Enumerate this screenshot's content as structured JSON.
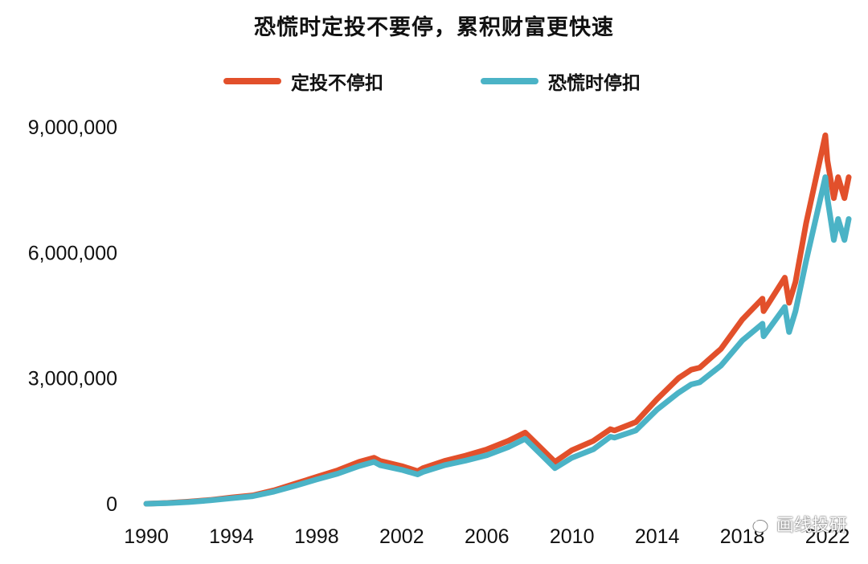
{
  "chart_data": {
    "type": "line",
    "title": "恐慌时定投不要停，累积财富更快速",
    "xlabel": "",
    "ylabel": "",
    "xlim": [
      1990,
      2023
    ],
    "ylim": [
      0,
      9000000
    ],
    "x_ticks": [
      1990,
      1994,
      1998,
      2002,
      2006,
      2010,
      2014,
      2018,
      2022
    ],
    "y_ticks": [
      0,
      3000000,
      6000000,
      9000000
    ],
    "y_tick_labels": [
      "0",
      "3,000,000",
      "6,000,000",
      "9,000,000"
    ],
    "legend_position": "top",
    "grid": false,
    "series": [
      {
        "name": "定投不停扣",
        "color": "#e2502b",
        "x": [
          1990,
          1991,
          1992,
          1993,
          1994,
          1995,
          1996,
          1997,
          1998,
          1999,
          2000,
          2000.7,
          2001,
          2002,
          2002.75,
          2003,
          2004,
          2005,
          2006,
          2007,
          2007.8,
          2008.5,
          2009.2,
          2010,
          2011,
          2011.8,
          2012,
          2013,
          2014,
          2015,
          2015.6,
          2016,
          2017,
          2018,
          2018.95,
          2019,
          2020,
          2020.2,
          2020.5,
          2021,
          2021.9,
          2022,
          2022.3,
          2022.5,
          2022.8,
          2023
        ],
        "values": [
          0,
          20000,
          50000,
          90000,
          150000,
          200000,
          320000,
          480000,
          640000,
          800000,
          1000000,
          1100000,
          1020000,
          900000,
          780000,
          850000,
          1020000,
          1150000,
          1300000,
          1500000,
          1700000,
          1350000,
          1000000,
          1280000,
          1500000,
          1780000,
          1750000,
          1950000,
          2500000,
          3000000,
          3200000,
          3250000,
          3700000,
          4400000,
          4900000,
          4600000,
          5400000,
          4800000,
          5300000,
          6700000,
          8800000,
          8200000,
          7300000,
          7800000,
          7300000,
          7800000
        ]
      },
      {
        "name": "恐慌时停扣",
        "color": "#4bb3c6",
        "x": [
          1990,
          1991,
          1992,
          1993,
          1994,
          1995,
          1996,
          1997,
          1998,
          1999,
          2000,
          2000.7,
          2001,
          2002,
          2002.75,
          2003,
          2004,
          2005,
          2006,
          2007,
          2007.8,
          2008.5,
          2009.2,
          2010,
          2011,
          2011.8,
          2012,
          2013,
          2014,
          2015,
          2015.6,
          2016,
          2017,
          2018,
          2018.95,
          2019,
          2020,
          2020.2,
          2020.5,
          2021,
          2021.9,
          2022,
          2022.3,
          2022.5,
          2022.8,
          2023
        ],
        "values": [
          0,
          15000,
          40000,
          80000,
          130000,
          180000,
          290000,
          430000,
          580000,
          720000,
          900000,
          1000000,
          920000,
          810000,
          700000,
          760000,
          920000,
          1030000,
          1160000,
          1350000,
          1550000,
          1200000,
          850000,
          1100000,
          1300000,
          1600000,
          1580000,
          1750000,
          2250000,
          2650000,
          2850000,
          2900000,
          3300000,
          3900000,
          4300000,
          4000000,
          4700000,
          4100000,
          4600000,
          5800000,
          7800000,
          7300000,
          6300000,
          6800000,
          6300000,
          6800000
        ]
      }
    ]
  },
  "watermark": {
    "icon": "wechat-icon",
    "text": "画线投研"
  }
}
